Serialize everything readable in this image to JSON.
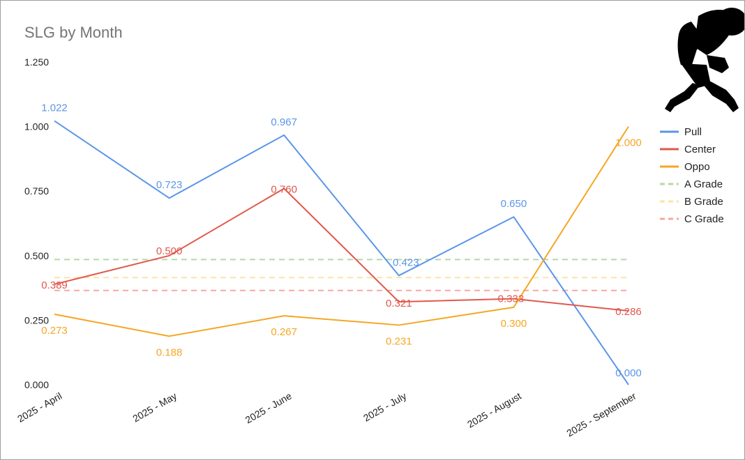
{
  "chart_data": {
    "type": "line",
    "title": "SLG by Month",
    "xlabel": "",
    "ylabel": "",
    "ylim": [
      0,
      1.25
    ],
    "yticks": [
      "0.000",
      "0.250",
      "0.500",
      "0.750",
      "1.000",
      "1.250"
    ],
    "categories": [
      "2025 - April",
      "2025 - May",
      "2025 - June",
      "2025 - July",
      "2025 - August",
      "2025 - September"
    ],
    "series": [
      {
        "name": "Pull",
        "color": "#5b95e8",
        "dashed": false,
        "values": [
          1.022,
          0.723,
          0.967,
          0.423,
          0.65,
          0.0
        ],
        "labels": [
          "1.022",
          "0.723",
          "0.967",
          "0.423",
          "0.650",
          "0.000"
        ]
      },
      {
        "name": "Center",
        "color": "#e0584c",
        "dashed": false,
        "values": [
          0.389,
          0.5,
          0.76,
          0.321,
          0.333,
          0.286
        ],
        "labels": [
          "0.389",
          "0.500",
          "0.760",
          "0.321",
          "0.333",
          "0.286"
        ]
      },
      {
        "name": "Oppo",
        "color": "#f5a623",
        "dashed": false,
        "values": [
          0.273,
          0.188,
          0.267,
          0.231,
          0.3,
          1.0
        ],
        "labels": [
          "0.273",
          "0.188",
          "0.267",
          "0.231",
          "0.300",
          "1.000"
        ]
      },
      {
        "name": "A Grade",
        "color": "#b5d8a8",
        "dashed": true,
        "values": [
          0.485,
          0.485,
          0.485,
          0.485,
          0.485,
          0.485
        ]
      },
      {
        "name": "B Grade",
        "color": "#fbe4a3",
        "dashed": true,
        "values": [
          0.415,
          0.415,
          0.415,
          0.415,
          0.415,
          0.415
        ]
      },
      {
        "name": "C Grade",
        "color": "#f3a9a3",
        "dashed": true,
        "values": [
          0.365,
          0.365,
          0.365,
          0.365,
          0.365,
          0.365
        ]
      }
    ],
    "legend_position": "right"
  }
}
